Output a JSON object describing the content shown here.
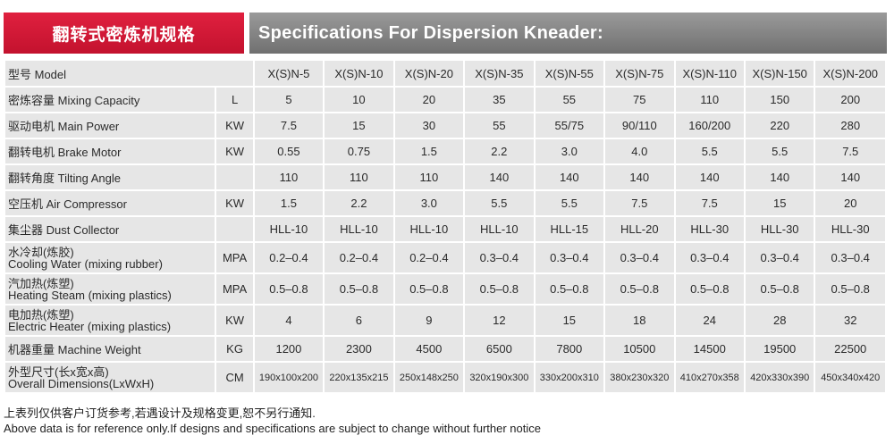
{
  "banner": {
    "title_cn": "翻转式密炼机规格",
    "title_en": "Specifications For Dispersion Kneader:"
  },
  "table": {
    "model_label": "型号 Model",
    "models": [
      "X(S)N-5",
      "X(S)N-10",
      "X(S)N-20",
      "X(S)N-35",
      "X(S)N-55",
      "X(S)N-75",
      "X(S)N-110",
      "X(S)N-150",
      "X(S)N-200"
    ],
    "rows": [
      {
        "name_cn": "密炼容量 Mixing Capacity",
        "name_en": "",
        "unit": "L",
        "values": [
          "5",
          "10",
          "20",
          "35",
          "55",
          "75",
          "110",
          "150",
          "200"
        ]
      },
      {
        "name_cn": "驱动电机 Main Power",
        "name_en": "",
        "unit": "KW",
        "values": [
          "7.5",
          "15",
          "30",
          "55",
          "55/75",
          "90/110",
          "160/200",
          "220",
          "280"
        ]
      },
      {
        "name_cn": "翻转电机 Brake Motor",
        "name_en": "",
        "unit": "KW",
        "values": [
          "0.55",
          "0.75",
          "1.5",
          "2.2",
          "3.0",
          "4.0",
          "5.5",
          "5.5",
          "7.5"
        ]
      },
      {
        "name_cn": "翻转角度 Tilting Angle",
        "name_en": "",
        "unit": "",
        "values": [
          "110",
          "110",
          "110",
          "140",
          "140",
          "140",
          "140",
          "140",
          "140"
        ]
      },
      {
        "name_cn": "空压机 Air Compressor",
        "name_en": "",
        "unit": "KW",
        "values": [
          "1.5",
          "2.2",
          "3.0",
          "5.5",
          "5.5",
          "7.5",
          "7.5",
          "15",
          "20"
        ]
      },
      {
        "name_cn": "集尘器 Dust Collector",
        "name_en": "",
        "unit": "",
        "values": [
          "HLL-10",
          "HLL-10",
          "HLL-10",
          "HLL-10",
          "HLL-15",
          "HLL-20",
          "HLL-30",
          "HLL-30",
          "HLL-30"
        ]
      },
      {
        "name_cn": "水冷却(炼胶)",
        "name_en": "Cooling Water (mixing rubber)",
        "unit": "MPA",
        "values": [
          "0.2–0.4",
          "0.2–0.4",
          "0.2–0.4",
          "0.3–0.4",
          "0.3–0.4",
          "0.3–0.4",
          "0.3–0.4",
          "0.3–0.4",
          "0.3–0.4"
        ]
      },
      {
        "name_cn": "汽加热(炼塑)",
        "name_en": "Heating Steam (mixing plastics)",
        "unit": "MPA",
        "values": [
          "0.5–0.8",
          "0.5–0.8",
          "0.5–0.8",
          "0.5–0.8",
          "0.5–0.8",
          "0.5–0.8",
          "0.5–0.8",
          "0.5–0.8",
          "0.5–0.8"
        ]
      },
      {
        "name_cn": "电加热(炼塑)",
        "name_en": "Electric Heater (mixing plastics)",
        "unit": "KW",
        "values": [
          "4",
          "6",
          "9",
          "12",
          "15",
          "18",
          "24",
          "28",
          "32"
        ]
      },
      {
        "name_cn": "机器重量 Machine Weight",
        "name_en": "",
        "unit": "KG",
        "values": [
          "1200",
          "2300",
          "4500",
          "6500",
          "7800",
          "10500",
          "14500",
          "19500",
          "22500"
        ]
      },
      {
        "name_cn": "外型尺寸(长x宽x高)",
        "name_en": "Overall Dimensions(LxWxH)",
        "unit": "CM",
        "values": [
          "190x100x200",
          "220x135x215",
          "250x148x250",
          "320x190x300",
          "330x200x310",
          "380x230x320",
          "410x270x358",
          "420x330x390",
          "450x340x420"
        ]
      }
    ]
  },
  "notes": {
    "cn": "上表列仅供客户订货参考,若遇设计及规格变更,恕不另行通知.",
    "en": "Above data is for reference only.If designs and specifications are subject to change without further notice"
  }
}
